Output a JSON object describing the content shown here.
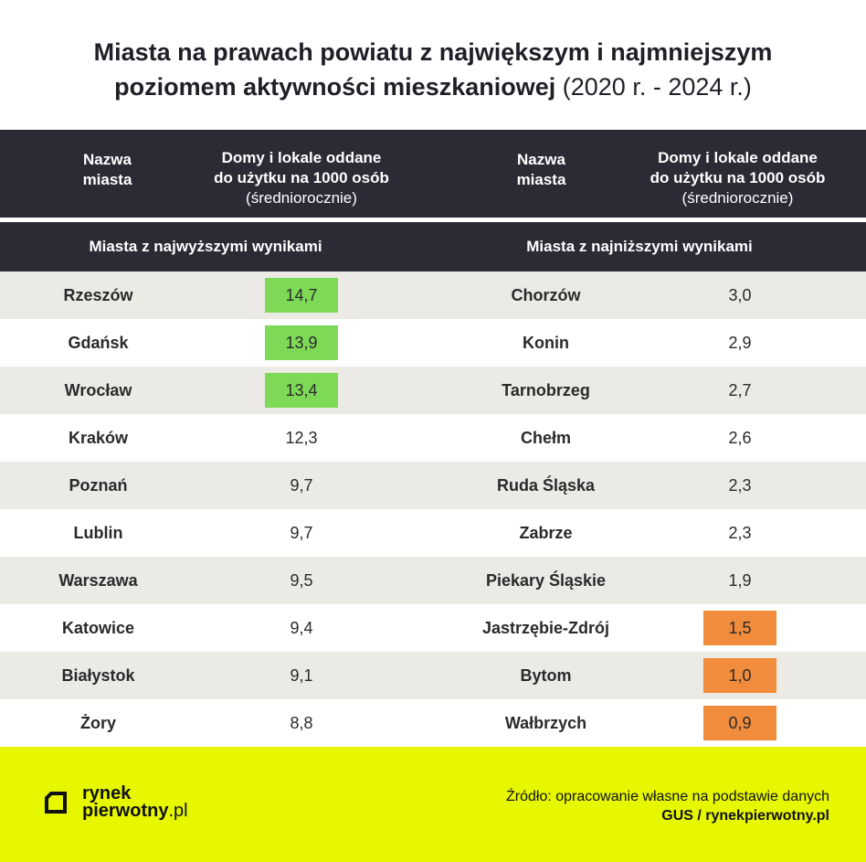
{
  "title": {
    "line1": "Miasta na prawach powiatu z największym i najmniejszym",
    "line2": "poziomem aktywności mieszkaniowej",
    "years": "(2020 r. - 2024 r.)"
  },
  "header": {
    "left_name_1": "Nazwa",
    "left_name_2": "miasta",
    "left_value_1": "Domy i lokale oddane",
    "left_value_2": "do użytku na 1000 osób",
    "left_value_3": "(średniorocznie)",
    "right_name_1": "Nazwa",
    "right_name_2": "miasta",
    "right_value_1": "Domy i lokale oddane",
    "right_value_2": "do użytku na 1000 osób",
    "right_value_3": "(średniorocznie)"
  },
  "subheader": {
    "left": "Miasta z najwyższymi wynikami",
    "right": "Miasta z najniższymi wynikami"
  },
  "colors": {
    "highlight_high": "#7ed957",
    "highlight_low": "#f08c3c",
    "header_bg": "#2a2b35",
    "footer_bg": "#e6f700",
    "row_shade": "#ebeae5"
  },
  "rows": [
    {
      "left_city": "Rzeszów",
      "left_value": "14,7",
      "left_hl": true,
      "right_city": "Chorzów",
      "right_value": "3,0",
      "right_hl": false
    },
    {
      "left_city": "Gdańsk",
      "left_value": "13,9",
      "left_hl": true,
      "right_city": "Konin",
      "right_value": "2,9",
      "right_hl": false
    },
    {
      "left_city": "Wrocław",
      "left_value": "13,4",
      "left_hl": true,
      "right_city": "Tarnobrzeg",
      "right_value": "2,7",
      "right_hl": false
    },
    {
      "left_city": "Kraków",
      "left_value": "12,3",
      "left_hl": false,
      "right_city": "Chełm",
      "right_value": "2,6",
      "right_hl": false
    },
    {
      "left_city": "Poznań",
      "left_value": "9,7",
      "left_hl": false,
      "right_city": "Ruda Śląska",
      "right_value": "2,3",
      "right_hl": false
    },
    {
      "left_city": "Lublin",
      "left_value": "9,7",
      "left_hl": false,
      "right_city": "Zabrze",
      "right_value": "2,3",
      "right_hl": false
    },
    {
      "left_city": "Warszawa",
      "left_value": "9,5",
      "left_hl": false,
      "right_city": "Piekary Śląskie",
      "right_value": "1,9",
      "right_hl": false
    },
    {
      "left_city": "Katowice",
      "left_value": "9,4",
      "left_hl": false,
      "right_city": "Jastrzębie-Zdrój",
      "right_value": "1,5",
      "right_hl": true
    },
    {
      "left_city": "Białystok",
      "left_value": "9,1",
      "left_hl": false,
      "right_city": "Bytom",
      "right_value": "1,0",
      "right_hl": true
    },
    {
      "left_city": "Żory",
      "left_value": "8,8",
      "left_hl": false,
      "right_city": "Wałbrzych",
      "right_value": "0,9",
      "right_hl": true
    }
  ],
  "footer": {
    "logo_line1": "rynek",
    "logo_line2_bold": "pierwotny",
    "logo_line2_thin": ".pl",
    "logo_icon": "logo-bracket-icon",
    "source_line1": "Źródło: opracowanie własne na podstawie danych",
    "source_line2": "GUS / rynekpierwotny.pl"
  }
}
